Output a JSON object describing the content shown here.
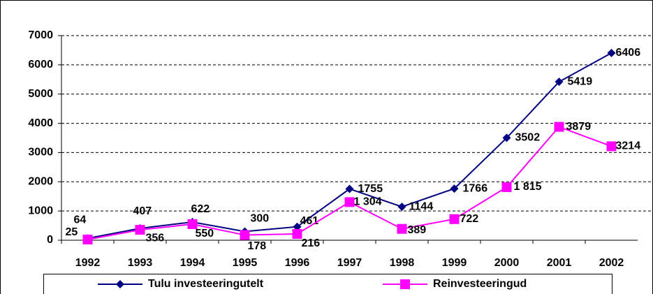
{
  "chart_data": {
    "type": "line",
    "categories": [
      "1992",
      "1993",
      "1994",
      "1995",
      "1996",
      "1997",
      "1998",
      "1999",
      "2000",
      "2001",
      "2002"
    ],
    "series": [
      {
        "name": "Tulu investeeringutelt",
        "color": "#000080",
        "marker": "diamond",
        "values": [
          64,
          407,
          622,
          300,
          461,
          1755,
          1144,
          1766,
          3502,
          5419,
          6406
        ]
      },
      {
        "name": "Reinvesteeringud",
        "color": "#ff00ff",
        "marker": "square",
        "values": [
          25,
          356,
          550,
          178,
          216,
          1304,
          389,
          722,
          1815,
          3879,
          3214
        ],
        "value_labels": [
          "25",
          "356",
          "550",
          "178",
          "216",
          "1 304",
          "389",
          "722",
          "1 815",
          "3879",
          "3214"
        ]
      }
    ],
    "ylim": [
      0,
      7000
    ],
    "yticks": [
      0,
      1000,
      2000,
      3000,
      4000,
      5000,
      6000,
      7000
    ],
    "grid": true
  }
}
